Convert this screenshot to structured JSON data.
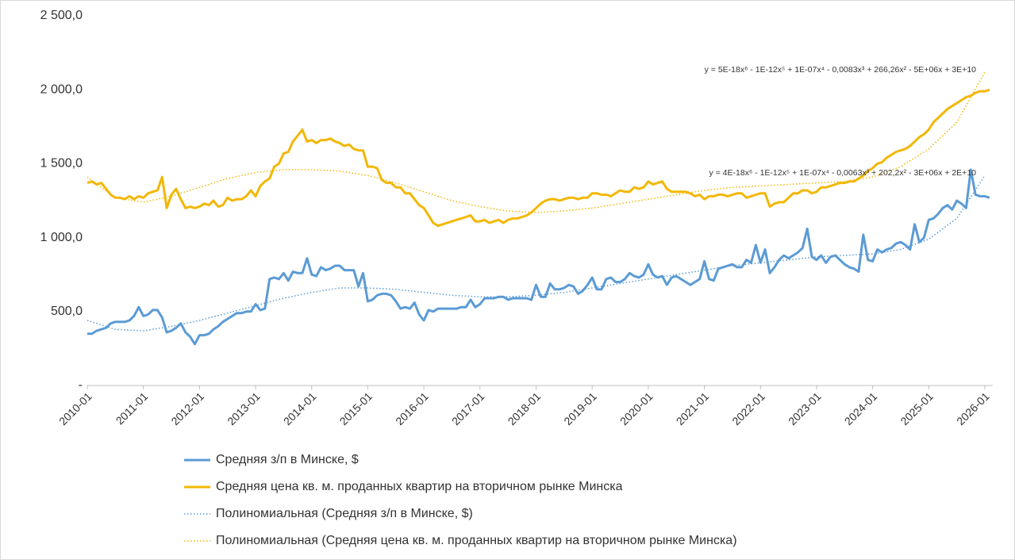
{
  "chart_data": {
    "type": "line",
    "ylim": [
      0,
      2500
    ],
    "yticks": [
      {
        "value": 0,
        "label": "-"
      },
      {
        "value": 500,
        "label": "500,0"
      },
      {
        "value": 1000,
        "label": "1 000,0"
      },
      {
        "value": 1500,
        "label": "1 500,0"
      },
      {
        "value": 2000,
        "label": "2 000,0"
      },
      {
        "value": 2500,
        "label": "2 500,0"
      }
    ],
    "x": [
      "2010-01",
      "2010-02",
      "2010-03",
      "2010-04",
      "2010-05",
      "2010-06",
      "2010-07",
      "2010-08",
      "2010-09",
      "2010-10",
      "2010-11",
      "2010-12",
      "2011-01",
      "2011-02",
      "2011-03",
      "2011-04",
      "2011-05",
      "2011-06",
      "2011-07",
      "2011-08",
      "2011-09",
      "2011-10",
      "2011-11",
      "2011-12",
      "2012-01",
      "2012-02",
      "2012-03",
      "2012-04",
      "2012-05",
      "2012-06",
      "2012-07",
      "2012-08",
      "2012-09",
      "2012-10",
      "2012-11",
      "2012-12",
      "2013-01",
      "2013-02",
      "2013-03",
      "2013-04",
      "2013-05",
      "2013-06",
      "2013-07",
      "2013-08",
      "2013-09",
      "2013-10",
      "2013-11",
      "2013-12",
      "2014-01",
      "2014-02",
      "2014-03",
      "2014-04",
      "2014-05",
      "2014-06",
      "2014-07",
      "2014-08",
      "2014-09",
      "2014-10",
      "2014-11",
      "2014-12",
      "2015-01",
      "2015-02",
      "2015-03",
      "2015-04",
      "2015-05",
      "2015-06",
      "2015-07",
      "2015-08",
      "2015-09",
      "2015-10",
      "2015-11",
      "2015-12",
      "2016-01",
      "2016-02",
      "2016-03",
      "2016-04",
      "2016-05",
      "2016-06",
      "2016-07",
      "2016-08",
      "2016-09",
      "2016-10",
      "2016-11",
      "2016-12",
      "2017-01",
      "2017-02",
      "2017-03",
      "2017-04",
      "2017-05",
      "2017-06",
      "2017-07",
      "2017-08",
      "2017-09",
      "2017-10",
      "2017-11",
      "2017-12",
      "2018-01",
      "2018-02",
      "2018-03",
      "2018-04",
      "2018-05",
      "2018-06",
      "2018-07",
      "2018-08",
      "2018-09",
      "2018-10",
      "2018-11",
      "2018-12",
      "2019-01",
      "2019-02",
      "2019-03",
      "2019-04",
      "2019-05",
      "2019-06",
      "2019-07",
      "2019-08",
      "2019-09",
      "2019-10",
      "2019-11",
      "2019-12",
      "2020-01",
      "2020-02",
      "2020-03",
      "2020-04",
      "2020-05",
      "2020-06",
      "2020-07",
      "2020-08",
      "2020-09",
      "2020-10",
      "2020-11",
      "2020-12",
      "2021-01",
      "2021-02",
      "2021-03",
      "2021-04",
      "2021-05",
      "2021-06",
      "2021-07",
      "2021-08",
      "2021-09",
      "2021-10",
      "2021-11",
      "2021-12",
      "2022-01",
      "2022-02",
      "2022-03",
      "2022-04",
      "2022-05",
      "2022-06",
      "2022-07",
      "2022-08",
      "2022-09",
      "2022-10",
      "2022-11",
      "2022-12",
      "2023-01",
      "2023-02",
      "2023-03",
      "2023-04",
      "2023-05",
      "2023-06",
      "2023-07",
      "2023-08",
      "2023-09",
      "2023-10",
      "2023-11",
      "2023-12",
      "2024-01",
      "2024-02",
      "2024-03",
      "2024-04",
      "2024-05",
      "2024-06",
      "2024-07",
      "2024-08",
      "2024-09",
      "2024-10",
      "2024-11",
      "2024-12",
      "2025-01",
      "2025-02",
      "2025-03",
      "2025-04",
      "2025-05",
      "2025-06",
      "2025-07",
      "2025-08",
      "2025-09",
      "2025-10",
      "2025-11",
      "2025-12",
      "2026-01",
      "2026-02"
    ],
    "xticks": [
      "2010-01",
      "2011-01",
      "2012-01",
      "2013-01",
      "2014-01",
      "2015-01",
      "2016-01",
      "2017-01",
      "2018-01",
      "2019-01",
      "2020-01",
      "2021-01",
      "2022-01",
      "2023-01",
      "2024-01",
      "2025-01",
      "2026-01"
    ],
    "series": [
      {
        "name": "Средняя з/п в Минске,  $",
        "color": "#5b9bd5",
        "style": "solid",
        "values": [
          350,
          350,
          370,
          380,
          390,
          420,
          430,
          430,
          430,
          440,
          470,
          530,
          470,
          480,
          510,
          510,
          460,
          360,
          370,
          390,
          420,
          360,
          330,
          280,
          340,
          340,
          350,
          380,
          400,
          430,
          450,
          470,
          490,
          490,
          500,
          500,
          550,
          510,
          520,
          720,
          730,
          720,
          760,
          710,
          770,
          760,
          760,
          860,
          750,
          740,
          800,
          780,
          790,
          810,
          810,
          780,
          780,
          780,
          670,
          760,
          570,
          580,
          610,
          620,
          620,
          610,
          570,
          520,
          530,
          520,
          560,
          480,
          440,
          510,
          500,
          520,
          520,
          520,
          520,
          520,
          530,
          530,
          580,
          530,
          550,
          590,
          590,
          590,
          600,
          600,
          580,
          590,
          590,
          590,
          590,
          580,
          680,
          600,
          600,
          690,
          650,
          650,
          660,
          680,
          670,
          620,
          640,
          680,
          730,
          650,
          650,
          720,
          730,
          700,
          700,
          720,
          760,
          740,
          730,
          750,
          820,
          750,
          730,
          740,
          680,
          730,
          740,
          720,
          700,
          680,
          700,
          720,
          840,
          720,
          710,
          790,
          800,
          810,
          820,
          800,
          800,
          850,
          830,
          950,
          830,
          920,
          760,
          800,
          850,
          880,
          860,
          880,
          900,
          930,
          1060,
          870,
          850,
          880,
          830,
          870,
          880,
          850,
          820,
          800,
          790,
          770,
          1020,
          850,
          840,
          920,
          900,
          920,
          930,
          960,
          970,
          950,
          920,
          1090,
          970,
          1000,
          1120,
          1130,
          1160,
          1200,
          1220,
          1190,
          1250,
          1230,
          1200,
          1460,
          1290,
          1280,
          1280,
          1270
        ]
      },
      {
        "name": "Средняя цена кв. м. проданных квартир на вторичном рынке Минска",
        "color": "#f2b705",
        "style": "solid",
        "values": [
          1370,
          1380,
          1360,
          1370,
          1330,
          1290,
          1270,
          1270,
          1260,
          1280,
          1260,
          1280,
          1270,
          1300,
          1310,
          1320,
          1410,
          1200,
          1290,
          1330,
          1260,
          1200,
          1210,
          1200,
          1210,
          1230,
          1220,
          1250,
          1210,
          1220,
          1270,
          1250,
          1260,
          1260,
          1280,
          1320,
          1280,
          1350,
          1380,
          1400,
          1480,
          1500,
          1570,
          1580,
          1650,
          1690,
          1730,
          1650,
          1660,
          1640,
          1660,
          1660,
          1670,
          1650,
          1640,
          1620,
          1630,
          1600,
          1590,
          1590,
          1480,
          1480,
          1470,
          1390,
          1370,
          1370,
          1340,
          1340,
          1300,
          1300,
          1260,
          1220,
          1200,
          1150,
          1100,
          1080,
          1090,
          1100,
          1110,
          1120,
          1130,
          1140,
          1150,
          1110,
          1110,
          1120,
          1100,
          1110,
          1120,
          1100,
          1120,
          1130,
          1130,
          1140,
          1150,
          1170,
          1200,
          1230,
          1250,
          1260,
          1260,
          1250,
          1260,
          1270,
          1270,
          1260,
          1270,
          1270,
          1300,
          1300,
          1290,
          1290,
          1280,
          1300,
          1320,
          1310,
          1310,
          1340,
          1330,
          1340,
          1380,
          1360,
          1370,
          1380,
          1330,
          1310,
          1310,
          1310,
          1310,
          1300,
          1280,
          1290,
          1260,
          1280,
          1280,
          1290,
          1290,
          1280,
          1290,
          1300,
          1300,
          1270,
          1280,
          1290,
          1300,
          1300,
          1210,
          1230,
          1240,
          1240,
          1270,
          1300,
          1300,
          1320,
          1320,
          1300,
          1310,
          1340,
          1340,
          1350,
          1360,
          1370,
          1370,
          1380,
          1380,
          1400,
          1420,
          1450,
          1470,
          1500,
          1510,
          1540,
          1560,
          1580,
          1590,
          1600,
          1620,
          1650,
          1680,
          1700,
          1730,
          1780,
          1810,
          1840,
          1870,
          1890,
          1910,
          1930,
          1950,
          1960,
          1980,
          1990,
          1990,
          2000
        ]
      },
      {
        "name": "Полиномиальная (Средняя з/п в Минске,  $)",
        "color": "#5b9bd5",
        "style": "dotted",
        "x": [
          "2010-01",
          "2010-07",
          "2011-01",
          "2011-07",
          "2012-01",
          "2012-07",
          "2013-01",
          "2013-07",
          "2014-01",
          "2014-07",
          "2015-01",
          "2015-07",
          "2016-01",
          "2016-07",
          "2017-01",
          "2017-07",
          "2018-01",
          "2018-07",
          "2019-01",
          "2019-07",
          "2020-01",
          "2020-07",
          "2021-01",
          "2021-07",
          "2022-01",
          "2022-07",
          "2023-01",
          "2023-07",
          "2024-01",
          "2024-07",
          "2025-01",
          "2025-07",
          "2026-01"
        ],
        "values": [
          440,
          380,
          370,
          400,
          440,
          490,
          540,
          590,
          630,
          660,
          660,
          650,
          630,
          610,
          600,
          600,
          610,
          630,
          660,
          690,
          720,
          750,
          780,
          810,
          830,
          850,
          870,
          880,
          890,
          920,
          990,
          1130,
          1420
        ]
      },
      {
        "name": "Полиномиальная (Средняя цена кв. м. проданных квартир на вторичном рынке Минска)",
        "color": "#f2b705",
        "style": "dotted",
        "x": [
          "2010-01",
          "2010-07",
          "2011-01",
          "2011-07",
          "2012-01",
          "2012-07",
          "2013-01",
          "2013-07",
          "2014-01",
          "2014-07",
          "2015-01",
          "2015-07",
          "2016-01",
          "2016-07",
          "2017-01",
          "2017-07",
          "2018-01",
          "2018-07",
          "2019-01",
          "2019-07",
          "2020-01",
          "2020-07",
          "2021-01",
          "2021-07",
          "2022-01",
          "2022-07",
          "2023-01",
          "2023-07",
          "2024-01",
          "2024-07",
          "2025-01",
          "2025-07",
          "2026-01"
        ],
        "values": [
          1410,
          1270,
          1240,
          1280,
          1340,
          1400,
          1440,
          1460,
          1460,
          1450,
          1420,
          1370,
          1310,
          1250,
          1210,
          1180,
          1170,
          1180,
          1200,
          1230,
          1260,
          1290,
          1320,
          1340,
          1350,
          1360,
          1370,
          1380,
          1410,
          1480,
          1600,
          1780,
          2120
        ]
      }
    ],
    "annotations": [
      "y = 5E-18x⁶ - 1E-12x⁵ + 1E-07x⁴ - 0,0083x³ + 266,26x² - 5E+06x + 3E+10",
      "y = 4E-18x⁶ - 1E-12x⁵ + 1E-07x⁴ - 0,0063x³ + 202,2x² - 3E+06x + 2E+10"
    ]
  }
}
